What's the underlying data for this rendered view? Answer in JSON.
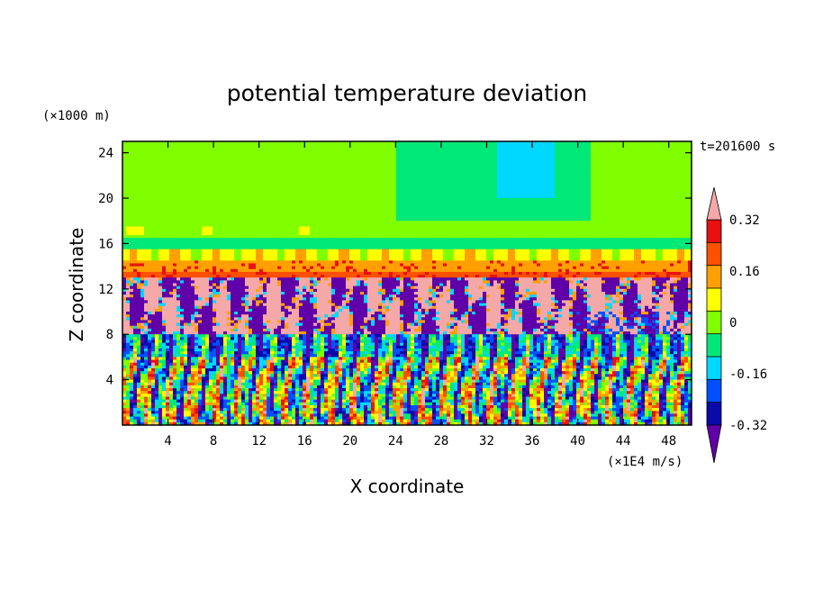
{
  "chart_data": {
    "type": "heatmap",
    "title": "potential temperature deviation",
    "xlabel": "X coordinate",
    "ylabel": "Z coordinate",
    "x_unit": "(×1E4 m/s)",
    "y_unit": "(×1000 m)",
    "time_label": "t=201600 s",
    "xlim": [
      0,
      50
    ],
    "ylim": [
      0,
      25
    ],
    "x_ticks": [
      4,
      8,
      12,
      16,
      20,
      24,
      28,
      32,
      36,
      40,
      44,
      48
    ],
    "y_ticks": [
      4,
      8,
      12,
      16,
      20,
      24
    ],
    "colorbar": {
      "levels": [
        -0.4,
        -0.32,
        -0.24,
        -0.16,
        -0.08,
        0,
        0.08,
        0.16,
        0.24,
        0.32,
        0.4
      ],
      "tick_labels": [
        "0.32",
        "0.16",
        "0",
        "-0.16",
        "-0.32"
      ],
      "tick_values": [
        0.32,
        0.16,
        0,
        -0.16,
        -0.32
      ],
      "colors_low_to_high": [
        "#6000a8",
        "#0a0aa8",
        "#0050ff",
        "#00d8ff",
        "#00e878",
        "#80ff00",
        "#ffff00",
        "#ffa000",
        "#ff5000",
        "#e81010",
        "#f4a8a8"
      ],
      "extend": "both"
    },
    "bands": [
      {
        "z_range": [
          16.5,
          25
        ],
        "description": "upper layer",
        "value": 0.04
      },
      {
        "z_range": [
          15.5,
          16.5
        ],
        "value": -0.02
      },
      {
        "z_range": [
          14.5,
          15.5
        ],
        "value": 0.12
      },
      {
        "z_range": [
          13,
          14.5
        ],
        "value": 0.3
      },
      {
        "z_range": [
          8,
          13
        ],
        "value": "mixed -0.4 / 0.4"
      },
      {
        "z_range": [
          0,
          8
        ],
        "value": "mixed -0.4 .. 0.4"
      }
    ]
  }
}
